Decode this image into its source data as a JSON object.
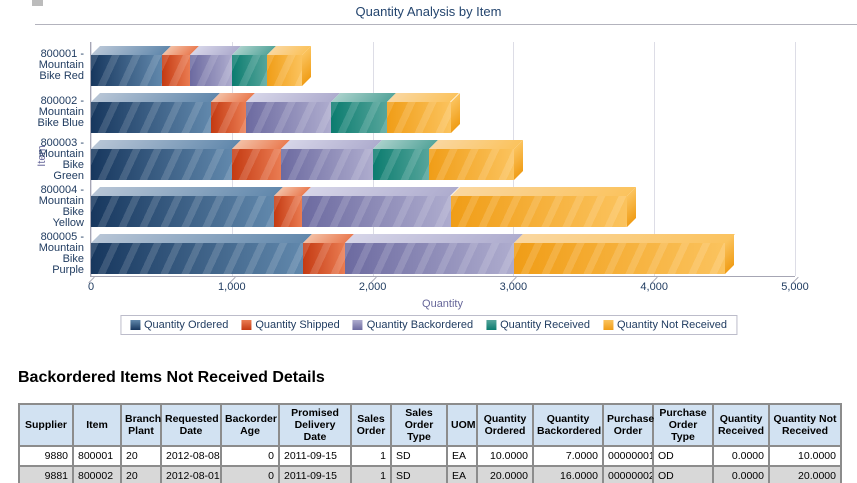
{
  "chart_data": {
    "type": "bar",
    "orientation": "horizontal-stacked-3d",
    "title": "Quantity Analysis by Item",
    "xlabel": "Quantity",
    "ylabel": "Item",
    "xlim": [
      0,
      5000
    ],
    "xticks": [
      "0",
      "1,000",
      "2,000",
      "3,000",
      "4,000",
      "5,000"
    ],
    "grid": true,
    "legend_position": "bottom",
    "categories": [
      "800001 - Mountain Bike Red",
      "800002 - Mountain Bike Blue",
      "800003 - Mountain Bike Green",
      "800004 - Mountain Bike Yellow",
      "800005 - Mountain Bike Purple"
    ],
    "series": [
      {
        "name": "Quantity Ordered",
        "color": "#17375e",
        "color_light": "#6188ac",
        "color_top": "#b7c5d6",
        "values": [
          500,
          850,
          1000,
          1300,
          1500
        ]
      },
      {
        "name": "Quantity Shipped",
        "color": "#c43a12",
        "color_light": "#ea7c52",
        "color_top": "#f3bfa4",
        "values": [
          200,
          250,
          350,
          200,
          300
        ]
      },
      {
        "name": "Quantity Backordered",
        "color": "#6c6aa0",
        "color_light": "#aeacce",
        "color_top": "#d6d5e8",
        "values": [
          300,
          600,
          650,
          1050,
          1200
        ]
      },
      {
        "name": "Quantity Received",
        "color": "#0b7c6f",
        "color_light": "#56a59b",
        "color_top": "#a8d0ca",
        "values": [
          250,
          400,
          400,
          0,
          0
        ]
      },
      {
        "name": "Quantity Not Received",
        "color": "#f09d17",
        "color_light": "#fbc35e",
        "color_top": "#fad7a0",
        "values": [
          250,
          450,
          600,
          1250,
          1500
        ]
      }
    ]
  },
  "details": {
    "heading": "Backordered Items Not Received Details",
    "table": {
      "columns": [
        "Supplier",
        "Item",
        "Branch Plant",
        "Requested Date",
        "Backorder Age",
        "Promised Delivery Date",
        "Sales Order",
        "Sales Order Type",
        "UOM",
        "Quantity Ordered",
        "Quantity Backordered",
        "Purchase Order",
        "Purchase Order Type",
        "Quantity Received",
        "Quantity Not Received"
      ],
      "rows": [
        [
          "9880",
          "800001",
          "20",
          "2012-08-08",
          "0",
          "2011-09-15",
          "1",
          "SD",
          "EA",
          "10.0000",
          "7.0000",
          "00000001",
          "OD",
          "0.0000",
          "10.0000"
        ],
        [
          "9881",
          "800002",
          "20",
          "2012-08-01",
          "0",
          "2011-09-15",
          "1",
          "SD",
          "EA",
          "20.0000",
          "16.0000",
          "00000002",
          "OD",
          "0.0000",
          "20.0000"
        ]
      ]
    }
  }
}
